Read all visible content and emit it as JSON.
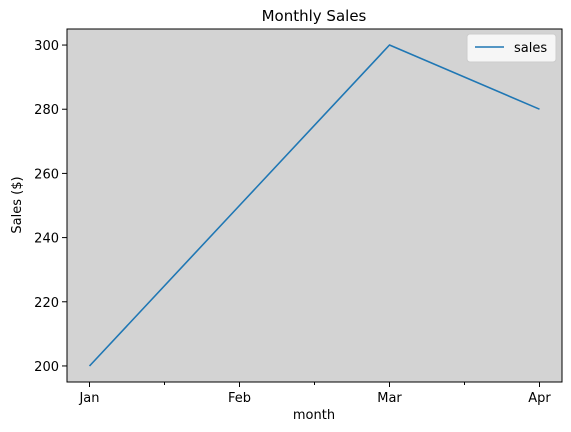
{
  "chart_data": {
    "type": "line",
    "title": "Monthly Sales",
    "xlabel": "month",
    "ylabel": "Sales ($)",
    "categories": [
      "Jan",
      "Feb",
      "Mar",
      "Apr"
    ],
    "series": [
      {
        "name": "sales",
        "values": [
          200,
          250,
          300,
          280
        ],
        "color": "#1f77b4"
      }
    ],
    "ylim": [
      195,
      305
    ],
    "yticks": [
      200,
      220,
      240,
      260,
      280,
      300
    ],
    "minor_x_ticks": true,
    "grid": false,
    "legend_position": "top-right",
    "plot_background": "#d3d3d3"
  }
}
